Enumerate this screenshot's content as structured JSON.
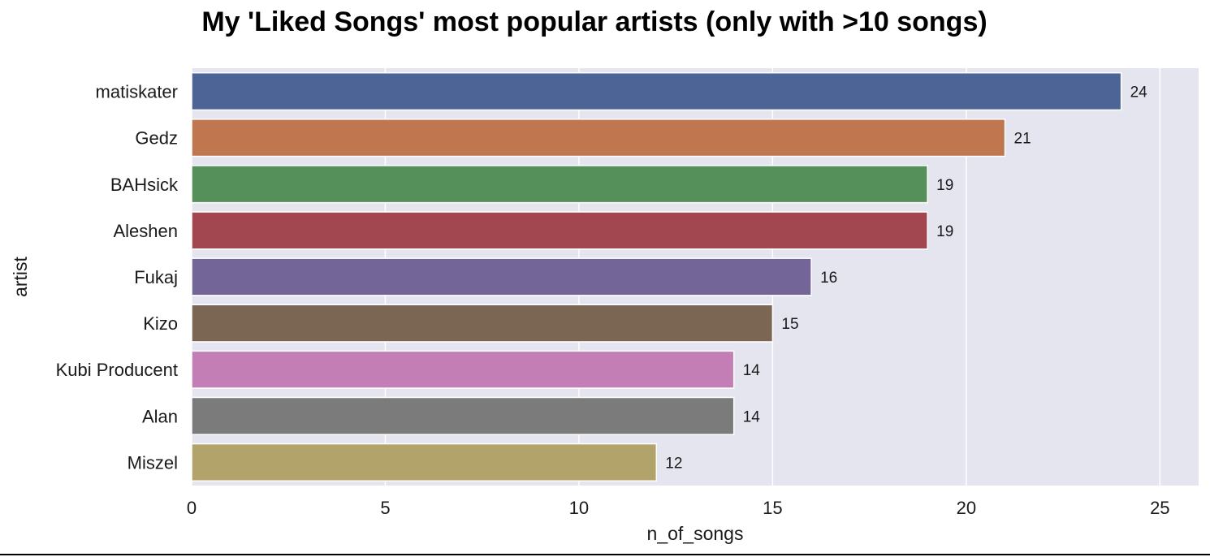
{
  "chart_data": {
    "type": "bar",
    "orientation": "horizontal",
    "title": "My 'Liked Songs' most popular artists (only with >10 songs)",
    "xlabel": "n_of_songs",
    "ylabel": "artist",
    "categories": [
      "matiskater",
      "Gedz",
      "BAHsick",
      "Aleshen",
      "Fukaj",
      "Kizo",
      "Kubi Producent",
      "Alan",
      "Miszel"
    ],
    "values": [
      24,
      21,
      19,
      19,
      16,
      15,
      14,
      14,
      12
    ],
    "data_labels": [
      "24",
      "21",
      "19",
      "19",
      "16",
      "15",
      "14",
      "14",
      "12"
    ],
    "colors": [
      "#4c6496",
      "#c0764f",
      "#558f5a",
      "#a2464f",
      "#746599",
      "#7b6653",
      "#c37fb5",
      "#7b7b7b",
      "#b2a36b"
    ],
    "xlim": [
      0,
      26
    ],
    "xticks": [
      0,
      5,
      10,
      15,
      20,
      25
    ],
    "xtick_labels": [
      "0",
      "5",
      "10",
      "15",
      "20",
      "25"
    ],
    "grid": true,
    "background": "#e5e5f0",
    "grid_color": "#ffffff"
  }
}
